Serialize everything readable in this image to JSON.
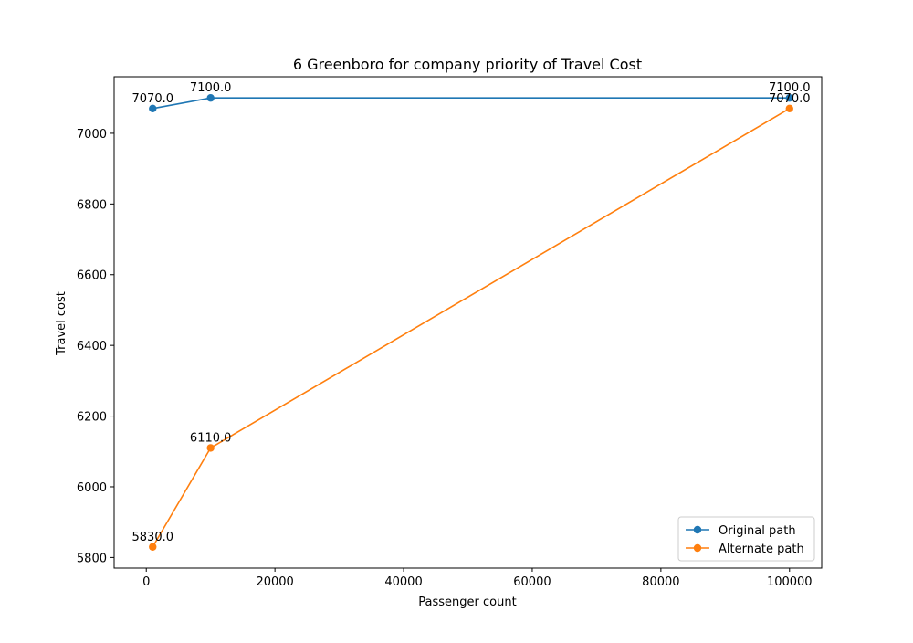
{
  "chart_data": {
    "type": "line",
    "title": "6 Greenboro for company priority of Travel Cost",
    "xlabel": "Passenger count",
    "ylabel": "Travel cost",
    "xlim": [
      -5000,
      105000
    ],
    "ylim": [
      5770,
      7160
    ],
    "xticks": [
      0,
      20000,
      40000,
      60000,
      80000,
      100000
    ],
    "xtick_labels": [
      "0",
      "20000",
      "40000",
      "60000",
      "80000",
      "100000"
    ],
    "yticks": [
      5800,
      6000,
      6200,
      6400,
      6600,
      6800,
      7000
    ],
    "ytick_labels": [
      "5800",
      "6000",
      "6200",
      "6400",
      "6600",
      "6800",
      "7000"
    ],
    "grid": false,
    "legend_position": "lower right",
    "x": [
      1000,
      10000,
      100000
    ],
    "series": [
      {
        "name": "Original path",
        "color": "#1f77b4",
        "marker": "circle",
        "values": [
          7070,
          7100,
          7100
        ],
        "data_labels": [
          "7070.0",
          "7100.0",
          "7100.0"
        ]
      },
      {
        "name": "Alternate path",
        "color": "#ff7f0e",
        "marker": "circle",
        "values": [
          5830,
          6110,
          7070
        ],
        "data_labels": [
          "5830.0",
          "6110.0",
          "7070.0"
        ]
      }
    ]
  }
}
